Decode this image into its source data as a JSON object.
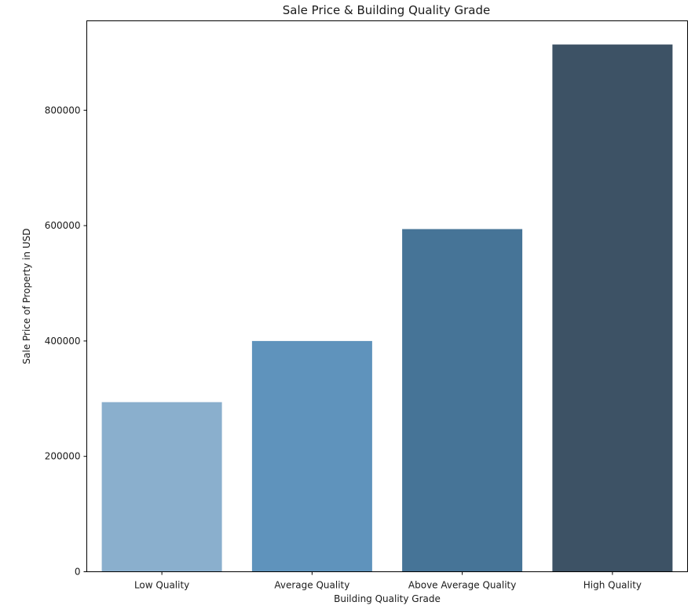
{
  "chart_data": {
    "type": "bar",
    "title": "Sale Price & Building Quality Grade",
    "xlabel": "Building Quality Grade",
    "ylabel": "Sale Price of Property in USD",
    "categories": [
      "Low Quality",
      "Average Quality",
      "Above Average Quality",
      "High Quality"
    ],
    "values": [
      294000,
      400000,
      594000,
      914000
    ],
    "colors": [
      "#8AAFCD",
      "#5F93BC",
      "#467497",
      "#3D5265"
    ],
    "ylim": [
      0,
      955000
    ],
    "yticks": [
      0,
      200000,
      400000,
      600000,
      800000
    ],
    "ytick_labels": [
      "0",
      "200000",
      "400000",
      "600000",
      "800000"
    ],
    "grid": false,
    "legend": "none"
  }
}
